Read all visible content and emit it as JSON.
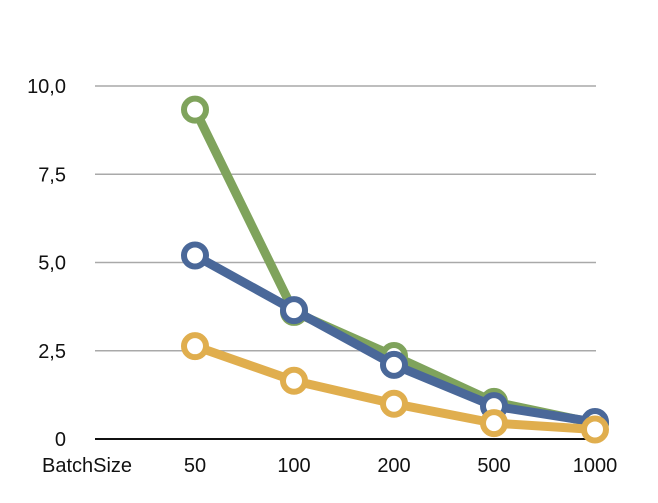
{
  "chart_data": {
    "type": "line",
    "title": "",
    "xlabel": "BatchSize",
    "ylabel": "",
    "categories": [
      "50",
      "100",
      "200",
      "500",
      "1000"
    ],
    "ylim": [
      0,
      10
    ],
    "y_ticks": [
      {
        "value": 0,
        "label": "0"
      },
      {
        "value": 2.5,
        "label": "2,5"
      },
      {
        "value": 5,
        "label": "5,0"
      },
      {
        "value": 7.5,
        "label": "7,5"
      },
      {
        "value": 10,
        "label": "10,0"
      }
    ],
    "grid": true,
    "legend": "none",
    "series": [
      {
        "color": "#7fa35c",
        "values": [
          9.33,
          3.6,
          2.35,
          1.05,
          0.45
        ]
      },
      {
        "color": "#4a6899",
        "values": [
          5.2,
          3.65,
          2.1,
          0.93,
          0.48
        ]
      },
      {
        "color": "#e0ae4e",
        "values": [
          2.63,
          1.65,
          1.0,
          0.45,
          0.27
        ]
      }
    ]
  }
}
